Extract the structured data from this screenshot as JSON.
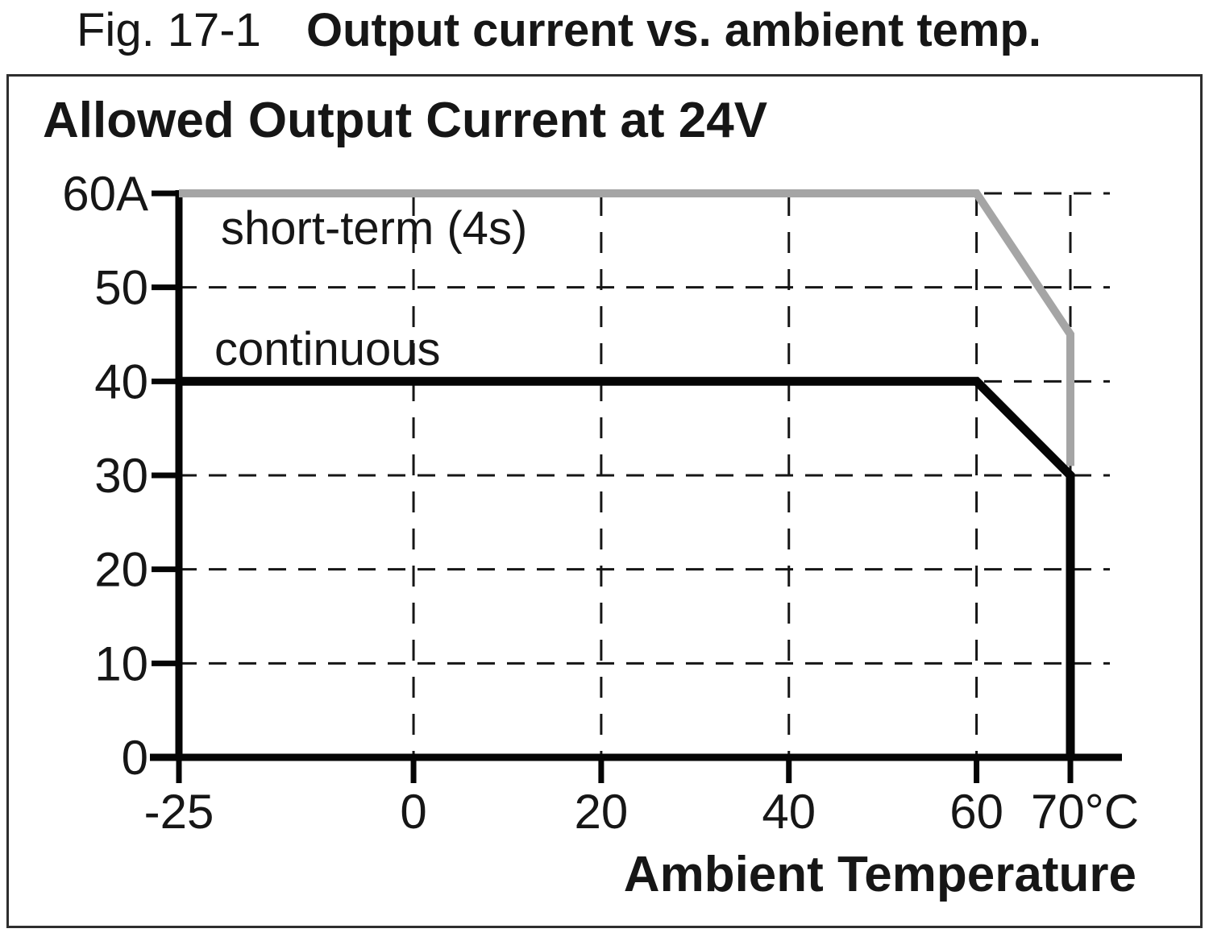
{
  "figure": {
    "label": "Fig. 17-1",
    "title": "Output current vs. ambient temp."
  },
  "panel": {
    "title": "Allowed Output Current at 24V"
  },
  "chart_data": {
    "type": "line",
    "title": "Allowed Output Current at 24V",
    "xlabel": "Ambient Temperature",
    "ylabel": "Allowed Output Current",
    "x_unit": "°C",
    "y_unit": "A",
    "xlim": [
      -25,
      70
    ],
    "ylim": [
      0,
      60
    ],
    "x_ticks": [
      {
        "value": -25,
        "label": "-25"
      },
      {
        "value": 0,
        "label": "0"
      },
      {
        "value": 20,
        "label": "20"
      },
      {
        "value": 40,
        "label": "40"
      },
      {
        "value": 60,
        "label": "60"
      },
      {
        "value": 70,
        "label": "70°C"
      }
    ],
    "y_ticks": [
      {
        "value": 0,
        "label": "0"
      },
      {
        "value": 10,
        "label": "10"
      },
      {
        "value": 20,
        "label": "20"
      },
      {
        "value": 30,
        "label": "30"
      },
      {
        "value": 40,
        "label": "40"
      },
      {
        "value": 50,
        "label": "50"
      },
      {
        "value": 60,
        "label": "60A"
      }
    ],
    "grid": {
      "style": "dashed",
      "vertical_at": [
        0,
        20,
        40,
        60,
        70
      ],
      "horizontal_at": [
        10,
        20,
        30,
        40,
        50,
        60
      ]
    },
    "legend_position": "on-curve",
    "series": [
      {
        "name": "short-term (4s)",
        "color": "#a5a5a5",
        "points": [
          [
            -25,
            60
          ],
          [
            60,
            60
          ],
          [
            70,
            45
          ],
          [
            70,
            31
          ]
        ]
      },
      {
        "name": "continuous",
        "color": "#050505",
        "points": [
          [
            -25,
            40
          ],
          [
            60,
            40
          ],
          [
            70,
            30
          ],
          [
            70,
            0
          ]
        ]
      }
    ]
  },
  "colors": {
    "curve_short_term": "#a5a5a5",
    "curve_continuous": "#050505",
    "grid": "#161616",
    "axis": "#050505",
    "text": "#161616",
    "panel_border": "#2e2e2e",
    "background": "#ffffff"
  }
}
